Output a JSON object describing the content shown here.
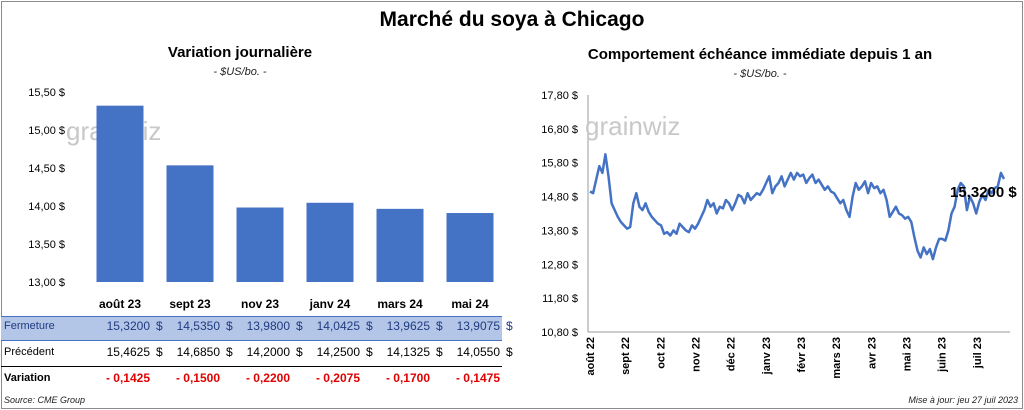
{
  "title": "Marché du soya à Chicago",
  "watermark": "grainwiz",
  "source": "Source: CME Group",
  "updated": "Mise à jour: jeu 27 juil 2023",
  "colors": {
    "bar": "#4472c4",
    "line": "#4472c4",
    "negative": "#e00000",
    "highlight": "#b4c6e7"
  },
  "chart_data": [
    {
      "type": "bar",
      "title": "Variation journalière",
      "unit": "- $US/bo. -",
      "categories": [
        "août 23",
        "sept 23",
        "nov 23",
        "janv 24",
        "mars 24",
        "mai 24"
      ],
      "values": [
        15.32,
        14.535,
        13.98,
        14.0425,
        13.9625,
        13.9075
      ],
      "ylim": [
        13.0,
        15.5
      ],
      "yticks": [
        "13,00 $",
        "13,50 $",
        "14,00 $",
        "14,50 $",
        "15,00 $",
        "15,50 $"
      ],
      "ytick_values": [
        13.0,
        13.5,
        14.0,
        14.5,
        15.0,
        15.5
      ]
    },
    {
      "type": "line",
      "title": "Comportement échéance immédiate depuis 1 an",
      "unit": "- $US/bo. -",
      "ylim": [
        10.8,
        17.8
      ],
      "yticks": [
        "10,80 $",
        "11,80 $",
        "12,80 $",
        "13,80 $",
        "14,80 $",
        "15,80 $",
        "16,80 $",
        "17,80 $"
      ],
      "ytick_values": [
        10.8,
        11.8,
        12.8,
        13.8,
        14.8,
        15.8,
        16.8,
        17.8
      ],
      "xticks": [
        "août 22",
        "sept 22",
        "oct 22",
        "nov 22",
        "déc 22",
        "janv 23",
        "févr 23",
        "mars 23",
        "avr 23",
        "mai 23",
        "juin 23",
        "juil 23"
      ],
      "last_label": "15,3200 $",
      "values": [
        14.95,
        14.9,
        15.3,
        15.7,
        15.5,
        16.05,
        15.4,
        14.6,
        14.4,
        14.2,
        14.05,
        13.95,
        13.85,
        13.9,
        14.6,
        14.9,
        14.5,
        14.4,
        14.6,
        14.35,
        14.2,
        14.1,
        14.0,
        13.95,
        13.7,
        13.75,
        13.65,
        13.8,
        13.7,
        14.0,
        13.9,
        13.8,
        13.75,
        13.95,
        13.85,
        14.0,
        14.2,
        14.4,
        14.7,
        14.5,
        14.6,
        14.3,
        14.5,
        14.45,
        14.7,
        14.6,
        14.4,
        14.6,
        14.85,
        14.8,
        14.6,
        14.9,
        14.7,
        14.8,
        14.9,
        14.85,
        15.0,
        15.2,
        15.4,
        14.9,
        15.1,
        15.2,
        15.4,
        15.1,
        15.3,
        15.5,
        15.3,
        15.5,
        15.4,
        15.45,
        15.2,
        15.35,
        15.45,
        15.2,
        15.3,
        15.15,
        15.0,
        15.1,
        14.95,
        14.9,
        14.75,
        14.6,
        14.7,
        14.4,
        14.2,
        14.8,
        15.2,
        15.0,
        15.1,
        15.25,
        14.9,
        15.2,
        15.05,
        15.1,
        14.9,
        15.0,
        14.7,
        14.2,
        14.35,
        14.5,
        14.3,
        14.25,
        14.15,
        14.2,
        14.05,
        13.6,
        13.2,
        13.0,
        13.3,
        13.1,
        13.25,
        12.95,
        13.3,
        13.55,
        13.55,
        13.5,
        13.8,
        14.3,
        14.5,
        15.0,
        15.2,
        15.1,
        14.4,
        14.8,
        14.6,
        14.3,
        14.65,
        14.85,
        14.7,
        15.0,
        14.9,
        15.05,
        15.1,
        15.5,
        15.32
      ]
    }
  ],
  "table": {
    "rows": [
      {
        "label": "Fermeture",
        "values": [
          "15,3200",
          "14,5350",
          "13,9800",
          "14,0425",
          "13,9625",
          "13,9075"
        ],
        "suffix": "$"
      },
      {
        "label": "Précédent",
        "values": [
          "15,4625",
          "14,6850",
          "14,2000",
          "14,2500",
          "14,1325",
          "14,0550"
        ],
        "suffix": "$"
      },
      {
        "label": "Variation",
        "values": [
          "- 0,1425",
          "- 0,1500",
          "- 0,2200",
          "- 0,2075",
          "- 0,1700",
          "- 0,1475"
        ],
        "suffix": ""
      }
    ]
  }
}
